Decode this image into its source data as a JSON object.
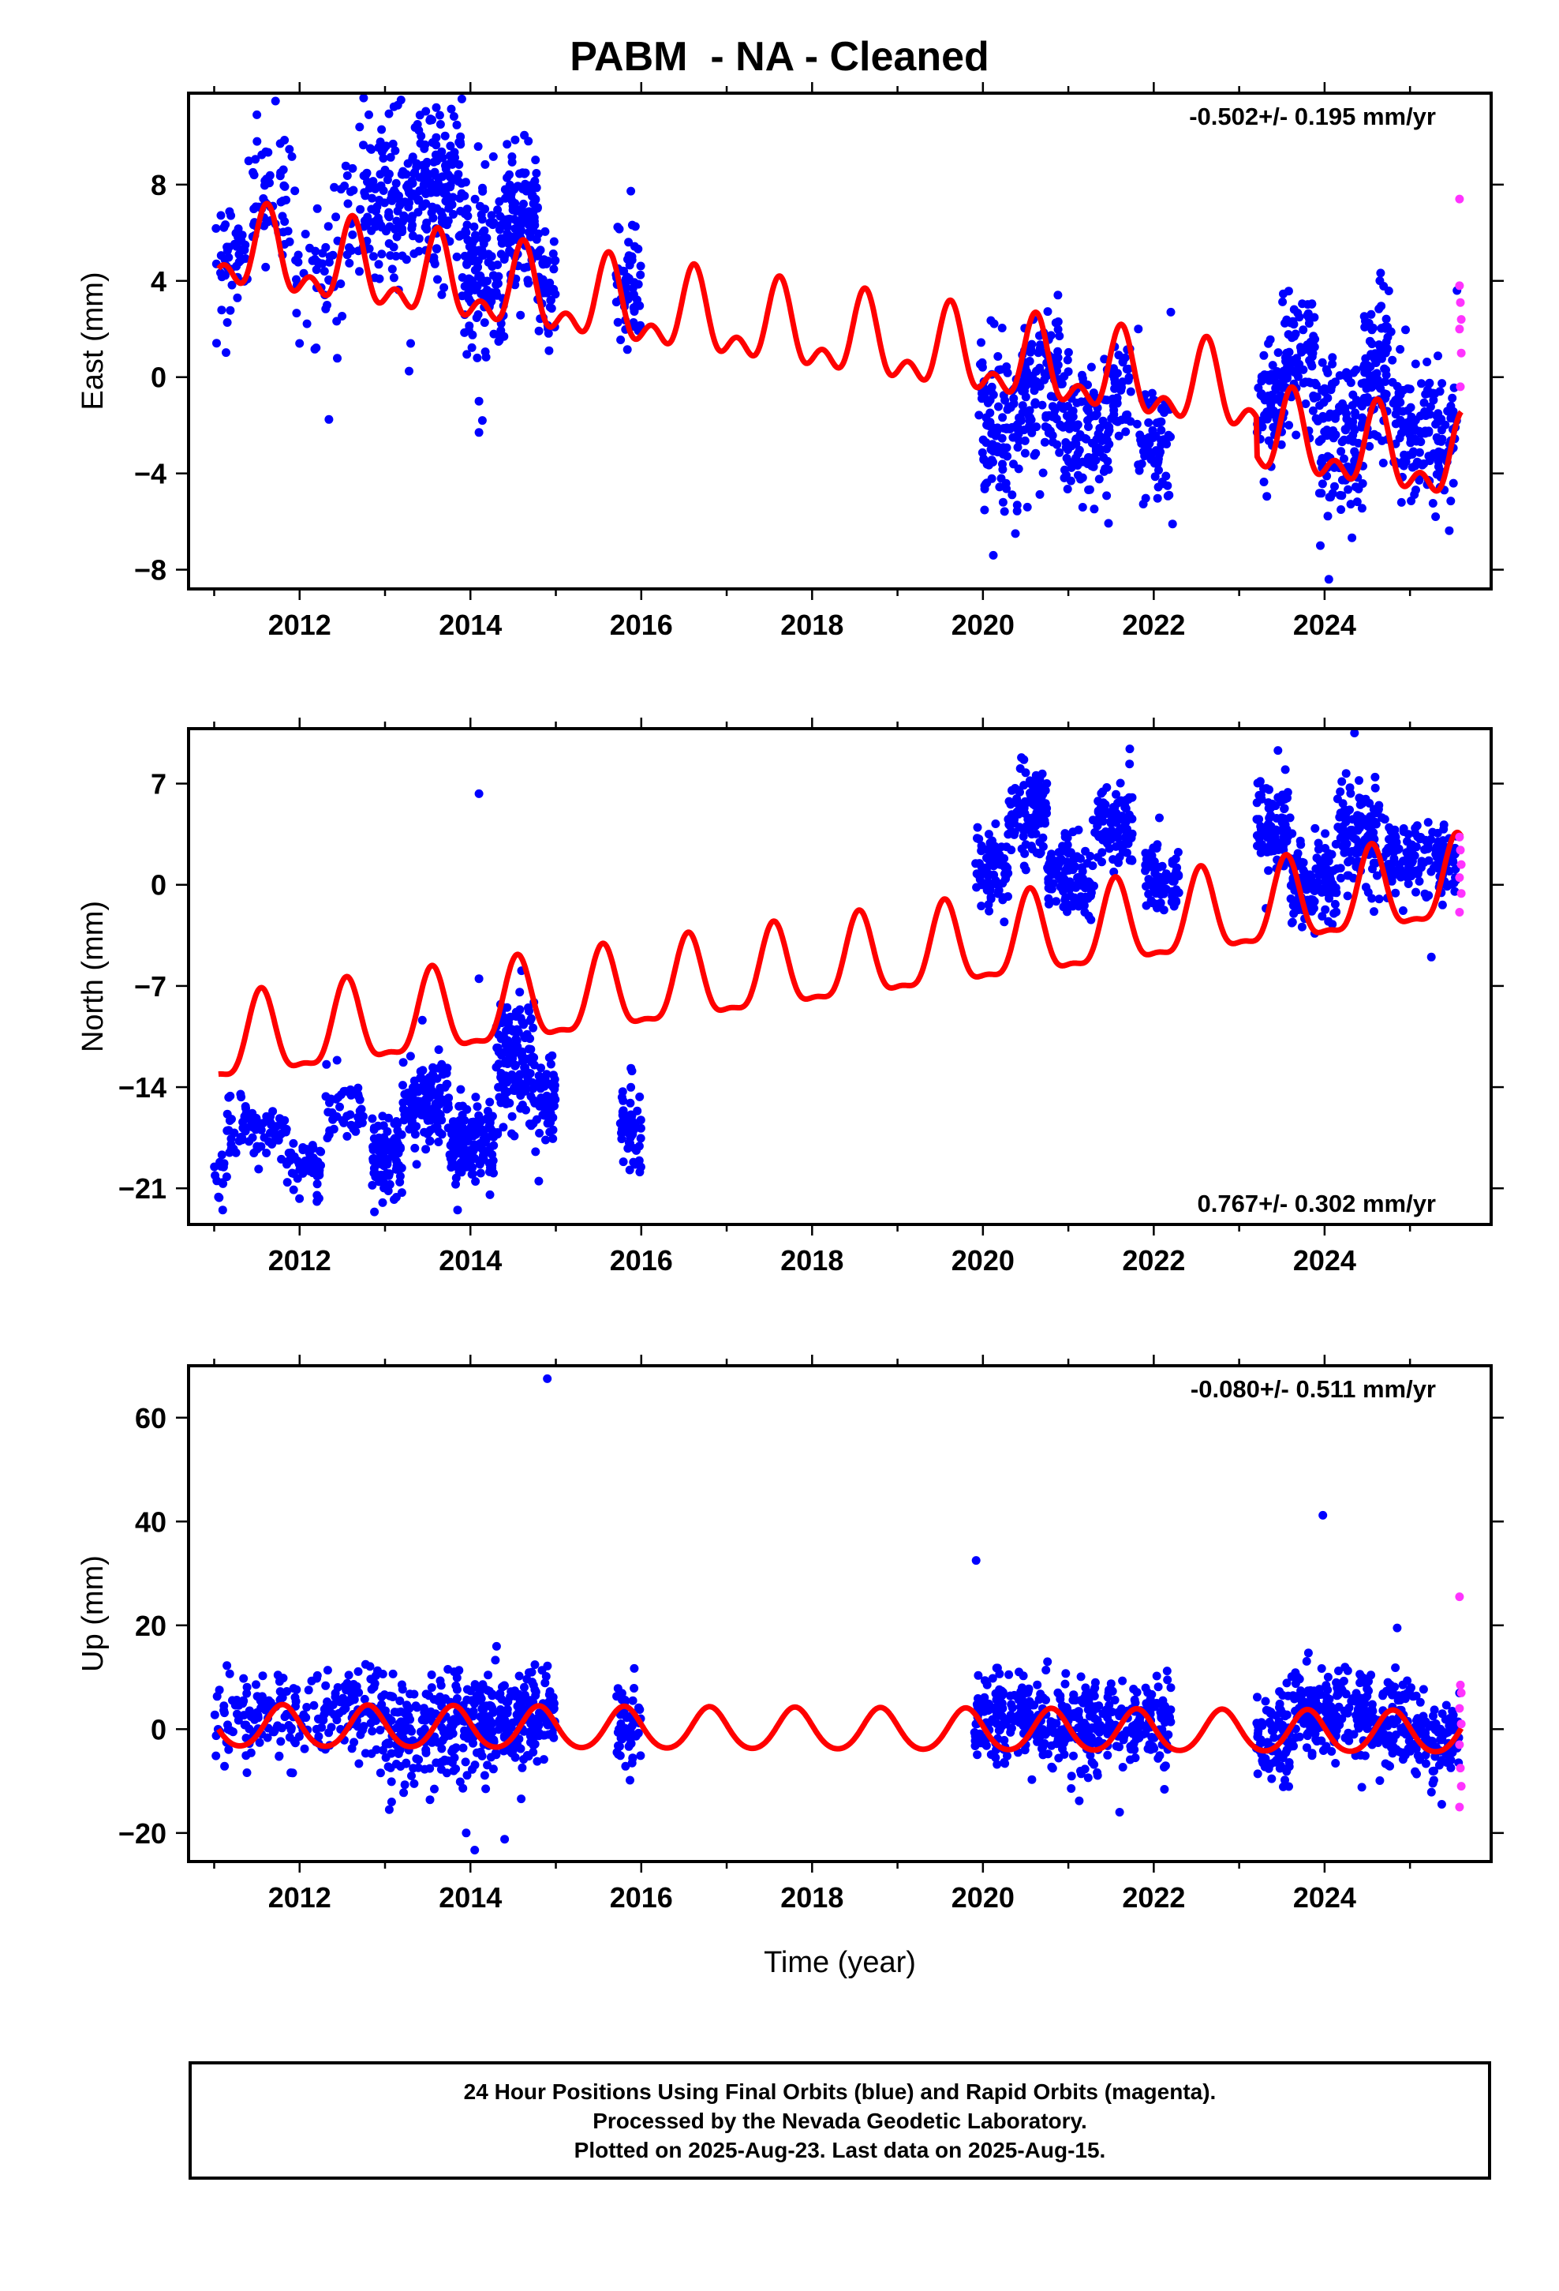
{
  "title": "PABM  - NA - Cleaned",
  "colors": {
    "final": "#0000ff",
    "rapid": "#ff33ff",
    "model": "#ff0000",
    "frame": "#000000"
  },
  "footer": {
    "line1": "24 Hour Positions Using Final Orbits (blue) and Rapid Orbits (magenta).",
    "line2": "Processed by the Nevada Geodetic Laboratory.",
    "line3": "Plotted on 2025-Aug-23. Last data on 2025-Aug-15."
  },
  "chart_data": [
    {
      "type": "scatter",
      "name": "east",
      "ylabel": "East (mm)",
      "xlabel": "",
      "rate_text": "-0.502+/- 0.195 mm/yr",
      "rate_position": "top-right",
      "xlim": [
        2010.7,
        2025.95
      ],
      "ylim": [
        -8.8,
        11.8
      ],
      "xticks": [
        2012,
        2014,
        2016,
        2018,
        2020,
        2022,
        2024
      ],
      "yticks": [
        -8,
        -4,
        0,
        4,
        8
      ],
      "model": {
        "mean_start": 5.2,
        "slope": -0.502,
        "t0": 2011.05,
        "annual_amp": 1.4,
        "annual_phase": 2011.62,
        "semi_amp": 0.9,
        "semi_phase": 2011.62,
        "offsets": [
          {
            "at": 2023.2,
            "delta": -1.6
          }
        ]
      },
      "final_clusters": [
        {
          "x0": 2011.02,
          "x1": 2011.4,
          "mean": 5.0,
          "sd": 1.3,
          "n": 45
        },
        {
          "x0": 2011.4,
          "x1": 2011.95,
          "mean": 7.6,
          "sd": 1.3,
          "n": 55
        },
        {
          "x0": 2011.95,
          "x1": 2012.5,
          "mean": 4.3,
          "sd": 1.5,
          "n": 45
        },
        {
          "x0": 2012.5,
          "x1": 2012.95,
          "mean": 7.2,
          "sd": 1.6,
          "n": 60
        },
        {
          "x0": 2012.95,
          "x1": 2013.45,
          "mean": 7.8,
          "sd": 1.8,
          "n": 110
        },
        {
          "x0": 2013.45,
          "x1": 2013.9,
          "mean": 8.0,
          "sd": 1.7,
          "n": 120
        },
        {
          "x0": 2013.9,
          "x1": 2014.4,
          "mean": 4.6,
          "sd": 1.8,
          "n": 140
        },
        {
          "x0": 2014.4,
          "x1": 2014.8,
          "mean": 6.6,
          "sd": 1.6,
          "n": 120
        },
        {
          "x0": 2014.8,
          "x1": 2015.0,
          "mean": 4.0,
          "sd": 1.2,
          "n": 40
        },
        {
          "x0": 2015.7,
          "x1": 2016.0,
          "mean": 3.6,
          "sd": 1.3,
          "n": 60
        },
        {
          "x0": 2019.95,
          "x1": 2020.45,
          "mean": -2.0,
          "sd": 1.4,
          "n": 110
        },
        {
          "x0": 2020.45,
          "x1": 2020.95,
          "mean": -0.6,
          "sd": 1.6,
          "n": 120
        },
        {
          "x0": 2020.95,
          "x1": 2021.5,
          "mean": -2.4,
          "sd": 1.4,
          "n": 120
        },
        {
          "x0": 2021.5,
          "x1": 2021.75,
          "mean": -0.6,
          "sd": 1.1,
          "n": 40
        },
        {
          "x0": 2021.8,
          "x1": 2022.2,
          "mean": -2.8,
          "sd": 1.4,
          "n": 70
        },
        {
          "x0": 2023.2,
          "x1": 2023.5,
          "mean": -1.2,
          "sd": 1.2,
          "n": 60
        },
        {
          "x0": 2023.5,
          "x1": 2023.9,
          "mean": 1.0,
          "sd": 1.5,
          "n": 90
        },
        {
          "x0": 2023.9,
          "x1": 2024.45,
          "mean": -2.4,
          "sd": 1.6,
          "n": 120
        },
        {
          "x0": 2024.45,
          "x1": 2024.8,
          "mean": 0.6,
          "sd": 1.5,
          "n": 90
        },
        {
          "x0": 2024.8,
          "x1": 2025.55,
          "mean": -2.2,
          "sd": 1.3,
          "n": 150
        }
      ],
      "final_outliers": [
        [
          2011.5,
          10.9
        ],
        [
          2012.75,
          11.6
        ],
        [
          2013.15,
          11.3
        ],
        [
          2013.6,
          11.2
        ],
        [
          2014.1,
          -1.0
        ],
        [
          2014.1,
          -2.3
        ],
        [
          2014.14,
          -1.8
        ],
        [
          2012.0,
          1.4
        ],
        [
          2020.38,
          -6.5
        ],
        [
          2024.05,
          -8.4
        ],
        [
          2023.95,
          -7.0
        ],
        [
          2022.22,
          -6.1
        ],
        [
          2022.2,
          2.7
        ],
        [
          2025.55,
          3.6
        ],
        [
          2025.3,
          -5.8
        ],
        [
          2013.3,
          1.4
        ]
      ],
      "rapid_points": [
        [
          2025.58,
          7.4
        ],
        [
          2025.58,
          3.8
        ],
        [
          2025.59,
          3.1
        ],
        [
          2025.6,
          2.4
        ],
        [
          2025.58,
          2.0
        ],
        [
          2025.6,
          1.0
        ],
        [
          2025.59,
          -0.4
        ]
      ]
    },
    {
      "type": "scatter",
      "name": "north",
      "ylabel": "North (mm)",
      "xlabel": "",
      "rate_text": "0.767+/- 0.302 mm/yr",
      "rate_position": "bottom-right",
      "xlim": [
        2010.7,
        2025.95
      ],
      "ylim": [
        -23.5,
        10.8
      ],
      "xticks": [
        2012,
        2014,
        2016,
        2018,
        2020,
        2022,
        2024
      ],
      "yticks": [
        -21,
        -14,
        -7,
        0,
        7
      ],
      "model": {
        "mean_start": -11.2,
        "slope": 0.767,
        "t0": 2011.05,
        "annual_amp": 2.8,
        "annual_phase": 2011.55,
        "semi_amp": 0.9,
        "semi_phase": 2011.55,
        "offsets": []
      },
      "final_clusters": [
        {
          "x0": 2011.0,
          "x1": 2011.15,
          "mean": -20.5,
          "sd": 1.0,
          "n": 12
        },
        {
          "x0": 2011.15,
          "x1": 2011.85,
          "mean": -17.0,
          "sd": 1.0,
          "n": 80
        },
        {
          "x0": 2011.85,
          "x1": 2012.25,
          "mean": -19.6,
          "sd": 0.9,
          "n": 55
        },
        {
          "x0": 2012.3,
          "x1": 2012.75,
          "mean": -15.3,
          "sd": 1.2,
          "n": 45
        },
        {
          "x0": 2012.85,
          "x1": 2013.2,
          "mean": -18.6,
          "sd": 1.4,
          "n": 90
        },
        {
          "x0": 2013.2,
          "x1": 2013.75,
          "mean": -15.0,
          "sd": 1.5,
          "n": 130
        },
        {
          "x0": 2013.75,
          "x1": 2014.3,
          "mean": -18.0,
          "sd": 1.4,
          "n": 150
        },
        {
          "x0": 2014.3,
          "x1": 2014.75,
          "mean": -12.5,
          "sd": 2.3,
          "n": 140
        },
        {
          "x0": 2014.75,
          "x1": 2015.0,
          "mean": -14.5,
          "sd": 1.5,
          "n": 60
        },
        {
          "x0": 2015.75,
          "x1": 2016.0,
          "mean": -17.0,
          "sd": 1.5,
          "n": 60
        },
        {
          "x0": 2019.9,
          "x1": 2020.3,
          "mean": 1.2,
          "sd": 1.3,
          "n": 80
        },
        {
          "x0": 2020.3,
          "x1": 2020.75,
          "mean": 5.0,
          "sd": 1.5,
          "n": 110
        },
        {
          "x0": 2020.75,
          "x1": 2021.3,
          "mean": 0.6,
          "sd": 1.4,
          "n": 120
        },
        {
          "x0": 2021.3,
          "x1": 2021.75,
          "mean": 4.2,
          "sd": 1.6,
          "n": 100
        },
        {
          "x0": 2021.9,
          "x1": 2022.3,
          "mean": 0.6,
          "sd": 1.3,
          "n": 70
        },
        {
          "x0": 2023.2,
          "x1": 2023.6,
          "mean": 3.5,
          "sd": 1.6,
          "n": 90
        },
        {
          "x0": 2023.6,
          "x1": 2024.15,
          "mean": 0.0,
          "sd": 1.5,
          "n": 130
        },
        {
          "x0": 2024.15,
          "x1": 2024.65,
          "mean": 3.6,
          "sd": 1.8,
          "n": 120
        },
        {
          "x0": 2024.65,
          "x1": 2025.55,
          "mean": 1.8,
          "sd": 1.3,
          "n": 160
        }
      ],
      "final_outliers": [
        [
          2014.1,
          6.3
        ],
        [
          2011.05,
          -21.6
        ],
        [
          2011.1,
          -22.5
        ],
        [
          2013.85,
          -22.5
        ],
        [
          2014.1,
          -6.5
        ],
        [
          2014.8,
          -20.5
        ],
        [
          2024.35,
          10.5
        ],
        [
          2025.25,
          -5.0
        ],
        [
          2020.45,
          8.8
        ]
      ],
      "rapid_points": [
        [
          2025.58,
          3.3
        ],
        [
          2025.59,
          2.4
        ],
        [
          2025.6,
          1.4
        ],
        [
          2025.58,
          0.5
        ],
        [
          2025.6,
          -0.6
        ],
        [
          2025.58,
          -1.9
        ]
      ]
    },
    {
      "type": "scatter",
      "name": "up",
      "ylabel": "Up (mm)",
      "xlabel": "Time (year)",
      "rate_text": "-0.080+/- 0.511 mm/yr",
      "rate_position": "top-right",
      "xlim": [
        2010.7,
        2025.95
      ],
      "ylim": [
        -25.5,
        70
      ],
      "xticks": [
        2012,
        2014,
        2016,
        2018,
        2020,
        2022,
        2024
      ],
      "yticks": [
        -20,
        0,
        20,
        40,
        60
      ],
      "model": {
        "mean_start": 0.4,
        "slope": -0.08,
        "t0": 2011.05,
        "annual_amp": 4.0,
        "annual_phase": 2011.8,
        "semi_amp": 0.4,
        "semi_phase": 2011.8,
        "offsets": []
      },
      "final_clusters": [
        {
          "x0": 2011.0,
          "x1": 2012.5,
          "mean": 2.0,
          "sd": 4.5,
          "n": 150
        },
        {
          "x0": 2012.5,
          "x1": 2013.0,
          "mean": 4.0,
          "sd": 4.0,
          "n": 70
        },
        {
          "x0": 2013.0,
          "x1": 2013.6,
          "mean": -1.5,
          "sd": 5.0,
          "n": 110
        },
        {
          "x0": 2013.6,
          "x1": 2014.5,
          "mean": 0.5,
          "sd": 5.2,
          "n": 200
        },
        {
          "x0": 2014.5,
          "x1": 2015.0,
          "mean": 2.0,
          "sd": 4.5,
          "n": 110
        },
        {
          "x0": 2015.7,
          "x1": 2016.0,
          "mean": 0.5,
          "sd": 4.0,
          "n": 60
        },
        {
          "x0": 2019.9,
          "x1": 2020.5,
          "mean": 2.5,
          "sd": 4.0,
          "n": 120
        },
        {
          "x0": 2020.5,
          "x1": 2021.4,
          "mean": 1.0,
          "sd": 4.5,
          "n": 180
        },
        {
          "x0": 2021.4,
          "x1": 2022.2,
          "mean": 2.0,
          "sd": 4.2,
          "n": 140
        },
        {
          "x0": 2023.2,
          "x1": 2023.6,
          "mean": -3.0,
          "sd": 4.5,
          "n": 80
        },
        {
          "x0": 2023.6,
          "x1": 2024.3,
          "mean": 2.5,
          "sd": 4.5,
          "n": 140
        },
        {
          "x0": 2024.3,
          "x1": 2025.0,
          "mean": 2.0,
          "sd": 4.5,
          "n": 140
        },
        {
          "x0": 2025.0,
          "x1": 2025.58,
          "mean": -2.0,
          "sd": 4.0,
          "n": 110
        }
      ],
      "final_outliers": [
        [
          2014.9,
          67.5
        ],
        [
          2019.92,
          32.5
        ],
        [
          2023.98,
          41.2
        ],
        [
          2014.05,
          -23.3
        ],
        [
          2014.4,
          -21.2
        ],
        [
          2013.95,
          -20.0
        ],
        [
          2024.85,
          19.5
        ],
        [
          2013.05,
          -15.5
        ],
        [
          2021.6,
          -16.0
        ]
      ],
      "rapid_points": [
        [
          2025.58,
          25.5
        ],
        [
          2025.59,
          8.5
        ],
        [
          2025.6,
          7.0
        ],
        [
          2025.58,
          4.0
        ],
        [
          2025.6,
          1.0
        ],
        [
          2025.58,
          -3.0
        ],
        [
          2025.59,
          -7.5
        ],
        [
          2025.6,
          -11.0
        ],
        [
          2025.58,
          -15.0
        ]
      ]
    }
  ]
}
